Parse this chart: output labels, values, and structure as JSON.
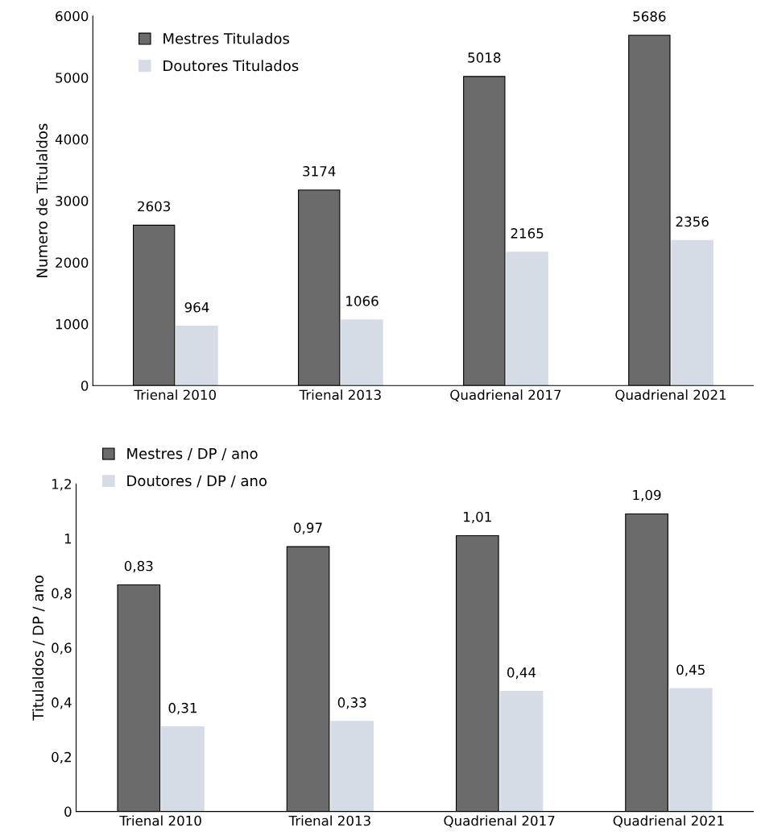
{
  "chart_data": [
    {
      "type": "bar",
      "ylabel": "Numero de Titulaldos",
      "categories": [
        "Trienal 2010",
        "Trienal 2013",
        "Quadrienal 2017",
        "Quadrienal 2021"
      ],
      "series": [
        {
          "name": "Mestres Titulados",
          "color": "#6b6b6b",
          "values": [
            2603,
            3174,
            5018,
            5686
          ]
        },
        {
          "name": "Doutores Titulados",
          "color": "#d6dce5",
          "values": [
            964,
            1066,
            2165,
            2356
          ]
        }
      ],
      "ylim": [
        0,
        6000
      ],
      "yticks": [
        0,
        1000,
        2000,
        3000,
        4000,
        5000,
        6000
      ],
      "data_labels": true,
      "legend": "top left",
      "grid": false
    },
    {
      "type": "bar",
      "ylabel": "Titulaldos / DP / ano",
      "categories": [
        "Trienal 2010",
        "Trienal 2013",
        "Quadrienal 2017",
        "Quadrienal 2021"
      ],
      "series": [
        {
          "name": "Mestres / DP / ano",
          "color": "#6b6b6b",
          "values": [
            0.83,
            0.97,
            1.01,
            1.09
          ],
          "value_labels": [
            "0,83",
            "0,97",
            "1,01",
            "1,09"
          ]
        },
        {
          "name": "Doutores / DP / ano",
          "color": "#d6dce5",
          "values": [
            0.31,
            0.33,
            0.44,
            0.45
          ],
          "value_labels": [
            "0,31",
            "0,33",
            "0,44",
            "0,45"
          ]
        }
      ],
      "ylim": [
        0,
        1.2
      ],
      "yticks": [
        0,
        {
          "value": 0.2,
          "label": "0,2"
        },
        {
          "value": 0.4,
          "label": "0,4"
        },
        {
          "value": 0.6,
          "label": "0,6"
        },
        {
          "value": 0.8,
          "label": "0,8"
        },
        {
          "value": 1,
          "label": "1"
        },
        {
          "value": 1.2,
          "label": "1,2"
        }
      ],
      "legend": "top left",
      "grid": false
    }
  ]
}
